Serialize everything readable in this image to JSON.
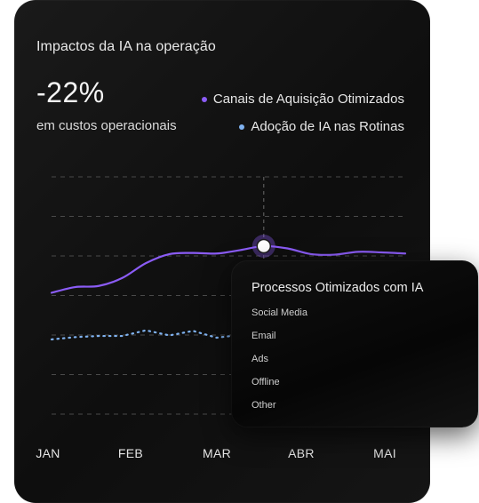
{
  "card": {
    "title": "Impactos da IA na operação",
    "stat_value": "-22%",
    "stat_caption": "em custos operacionais"
  },
  "legend": [
    {
      "label": "Canais de Aquisição Otimizados",
      "color": "#8b5cf6"
    },
    {
      "label": "Adoção de IA nas Rotinas",
      "color": "#7fb2f0"
    }
  ],
  "chart_data": {
    "type": "line",
    "x_labels": [
      "JAN",
      "FEB",
      "MAR",
      "ABR",
      "MAI"
    ],
    "grid": true,
    "series": [
      {
        "name": "Canais de Aquisição Otimizados",
        "color": "#8b5cf6",
        "style": "solid",
        "values": [
          0.04,
          0.14,
          0.16,
          0.3,
          0.56,
          0.72,
          0.74,
          0.73,
          0.79,
          0.86,
          0.82,
          0.72,
          0.71,
          0.76,
          0.75,
          0.73
        ]
      },
      {
        "name": "Adoção de IA nas Rotinas",
        "color": "#7fb2f0",
        "style": "dotted",
        "values": [
          -0.78,
          -0.74,
          -0.72,
          -0.72,
          -0.62,
          -0.71,
          -0.63,
          -0.75,
          -0.7,
          -0.78,
          -0.84,
          -0.9,
          -0.86,
          -0.88,
          -0.84,
          -0.8
        ]
      }
    ],
    "highlight_index": 9
  },
  "popup": {
    "title": "Processos Otimizados com IA",
    "items": [
      "Social Media",
      "Email",
      "Ads",
      "Offline",
      "Other"
    ]
  }
}
